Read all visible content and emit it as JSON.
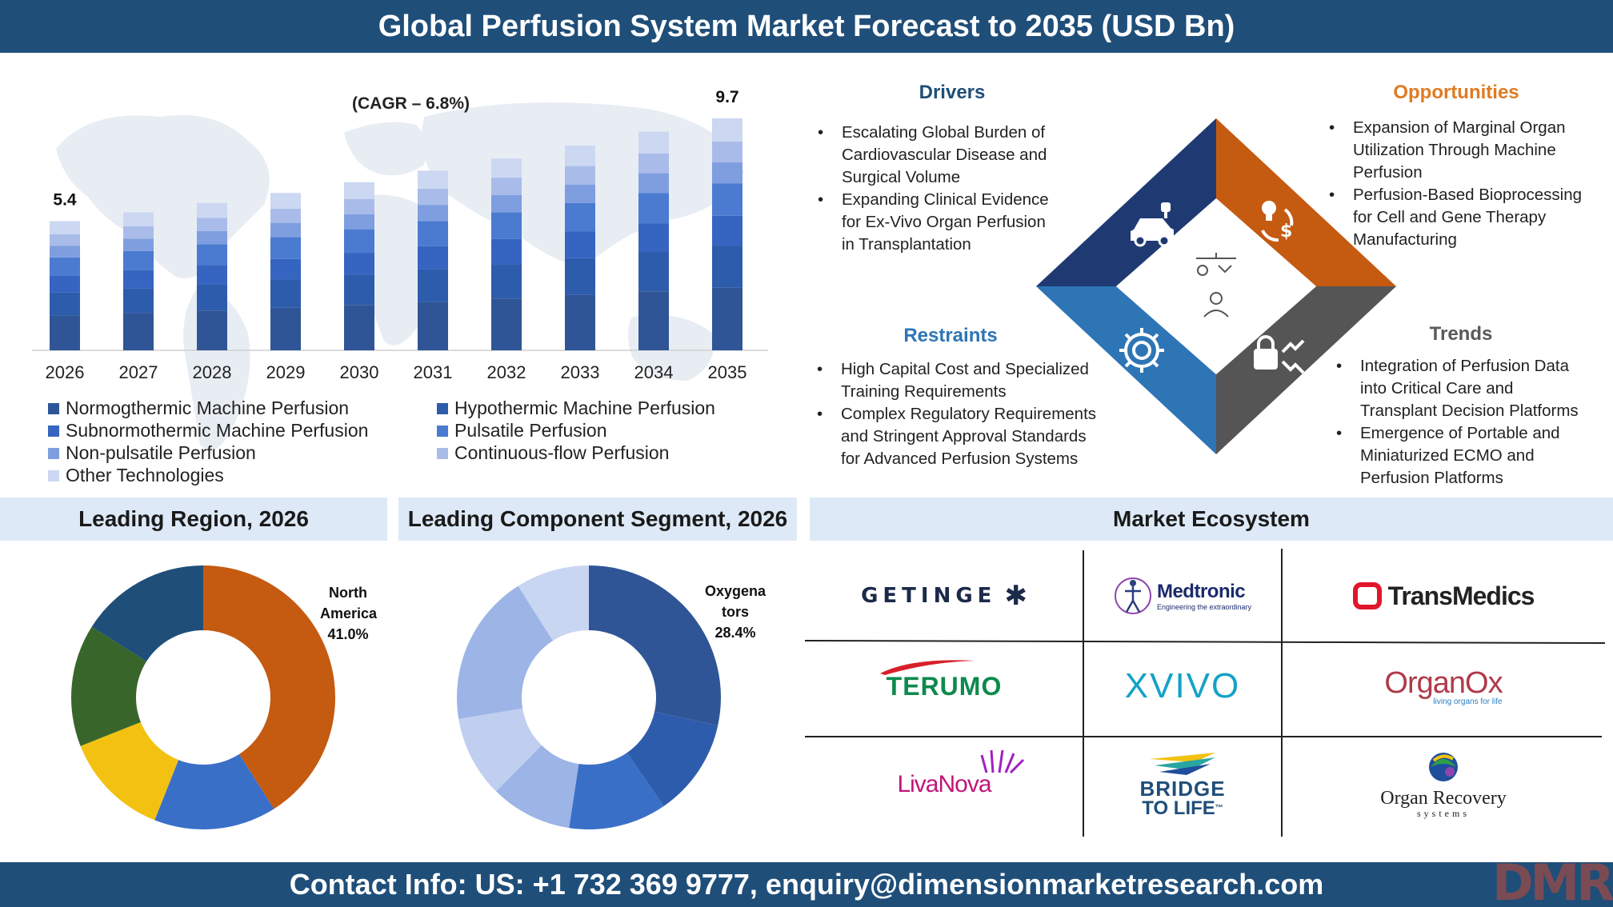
{
  "header": {
    "title": "Global Perfusion System Market Forecast to 2035 (USD Bn)"
  },
  "footer": {
    "contact": "Contact Info: US: +1 732 369 9777, enquiry@dimensionmarketresearch.com",
    "logo_text": "DMR"
  },
  "colors": {
    "navy": "#1f4e79",
    "seg": [
      "#2f5597",
      "#2e5cac",
      "#3565c0",
      "#4a7bd0",
      "#7f9ee0",
      "#a9bce9",
      "#ccd7f2"
    ],
    "orange": "#c55a11",
    "green": "#38662a",
    "yellow": "#f2c111",
    "blue_mid": "#3a6fc8",
    "dark_blue": "#1f4e79",
    "gray": "#555555"
  },
  "chart_data": [
    {
      "type": "bar",
      "stacked": true,
      "title": "",
      "annotation": "(CAGR – 6.8%)",
      "categories": [
        "2026",
        "2027",
        "2028",
        "2029",
        "2030",
        "2031",
        "2032",
        "2033",
        "2034",
        "2035"
      ],
      "totals": [
        5.4,
        5.77,
        6.16,
        6.58,
        7.03,
        7.51,
        8.02,
        8.56,
        9.14,
        9.7
      ],
      "data_labels": {
        "first": "5.4",
        "last": "9.7"
      },
      "series": [
        {
          "name": "Normogthermic Machine Perfusion",
          "share": 0.27
        },
        {
          "name": "Hypothermic Machine Perfusion",
          "share": 0.18
        },
        {
          "name": "Subnormothermic Machine Perfusion",
          "share": 0.13
        },
        {
          "name": "Pulsatile Perfusion",
          "share": 0.14
        },
        {
          "name": "Non-pulsatile Perfusion",
          "share": 0.09
        },
        {
          "name": "Continuous-flow Perfusion",
          "share": 0.09
        },
        {
          "name": "Other Technologies",
          "share": 0.1
        }
      ],
      "ylim": [
        0,
        10.5
      ]
    },
    {
      "type": "pie",
      "donut": true,
      "title": "Leading Region, 2026",
      "slices": [
        {
          "label": "North America",
          "value": 41.0,
          "color": "#c55a11"
        },
        {
          "label": "",
          "value": 15.0,
          "color": "#3a6fc8"
        },
        {
          "label": "",
          "value": 13.0,
          "color": "#f2c111"
        },
        {
          "label": "",
          "value": 15.0,
          "color": "#38662a"
        },
        {
          "label": "",
          "value": 16.0,
          "color": "#1f4e79"
        }
      ],
      "callout": {
        "name": "North America",
        "value": "41.0%"
      }
    },
    {
      "type": "pie",
      "donut": true,
      "title": "Leading Component Segment, 2026",
      "slices": [
        {
          "label": "Oxygenators",
          "value": 28.4,
          "color": "#2f5597"
        },
        {
          "label": "",
          "value": 12.0,
          "color": "#2e5cac"
        },
        {
          "label": "",
          "value": 12.0,
          "color": "#3a6fc8"
        },
        {
          "label": "",
          "value": 10.0,
          "color": "#9cb4e6"
        },
        {
          "label": "",
          "value": 10.0,
          "color": "#c0cff0"
        },
        {
          "label": "",
          "value": 18.6,
          "color": "#9cb4e6"
        },
        {
          "label": "",
          "value": 9.0,
          "color": "#c9d6f1"
        }
      ],
      "callout": {
        "name_line1": "Oxygena",
        "name_line2": "tors",
        "value": "28.4%"
      }
    }
  ],
  "drivers": {
    "title": "Drivers",
    "items": [
      "Escalating Global Burden of Cardiovascular Disease and Surgical Volume",
      "Expanding Clinical Evidence for Ex-Vivo Organ Perfusion in Transplantation"
    ]
  },
  "opportunities": {
    "title": "Opportunities",
    "items": [
      "Expansion of Marginal Organ Utilization Through Machine Perfusion",
      "Perfusion-Based Bioprocessing for Cell and Gene Therapy Manufacturing"
    ]
  },
  "restraints": {
    "title": "Restraints",
    "items": [
      "High Capital Cost and Specialized Training Requirements",
      "Complex Regulatory Requirements and Stringent Approval Standards for Advanced Perfusion Systems"
    ]
  },
  "trends": {
    "title": "Trends",
    "items": [
      "Integration of Perfusion Data into Critical Care and Transplant Decision Platforms",
      "Emergence of Portable and Miniaturized ECMO and Perfusion Platforms"
    ]
  },
  "sections": {
    "region": "Leading Region, 2026",
    "component": "Leading Component Segment, 2026",
    "ecosystem": "Market Ecosystem"
  },
  "ecosystem": {
    "getinge": "GETINGE",
    "medtronic": "Medtronic",
    "medtronic_tag": "Engineering the extraordinary",
    "transmedics": "TransMedics",
    "terumo": "TERUMO",
    "xvivo": "XVIVO",
    "organox": "OrganOx",
    "organox_tag": "living organs for life",
    "livanova": "LivaNova",
    "bridge": "BRIDGE",
    "tolife": "TO LIFE",
    "tm": "™",
    "organrecovery": "Organ Recovery",
    "systems": "systems"
  }
}
